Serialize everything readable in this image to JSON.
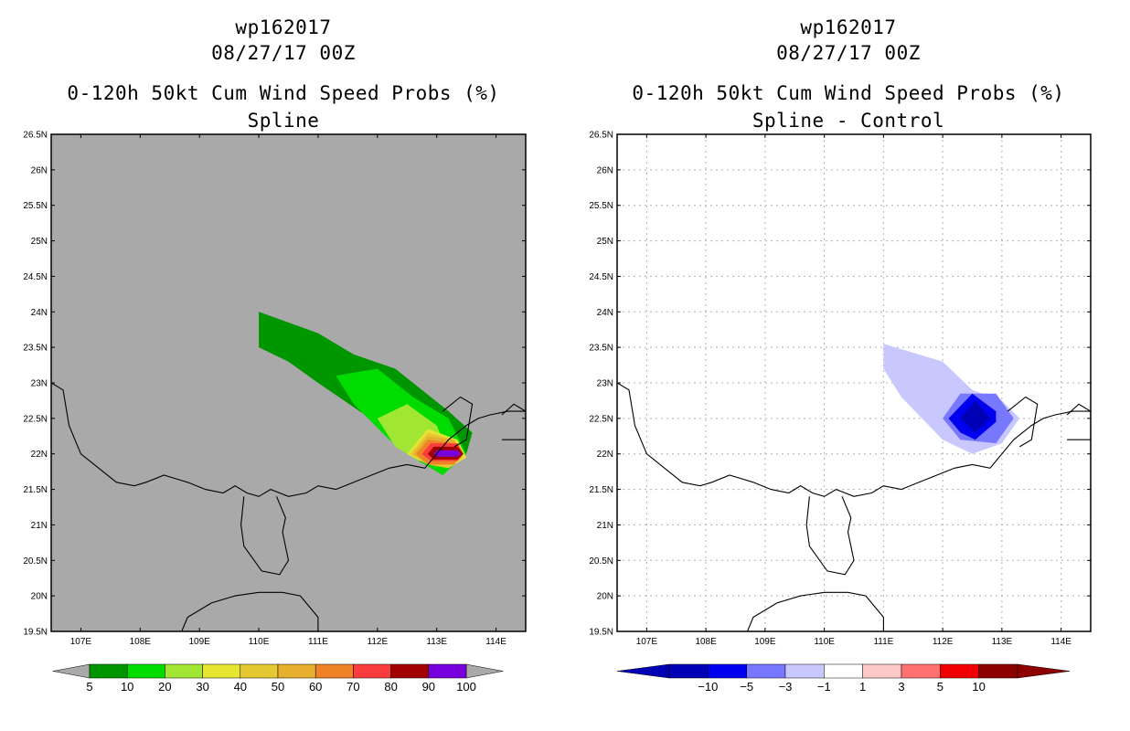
{
  "chart_data": [
    {
      "type": "contour-map",
      "storm_id": "wp162017",
      "datetime": "08/27/17 00Z",
      "title": "0-120h 50kt Cum Wind Speed Probs (%)",
      "subtitle": "Spline",
      "background_color": "#a9a9a9",
      "lon_ticks": [
        "107E",
        "108E",
        "109E",
        "110E",
        "111E",
        "112E",
        "113E",
        "114E"
      ],
      "lon_values": [
        107,
        108,
        109,
        110,
        111,
        112,
        113,
        114
      ],
      "lat_ticks": [
        "26.5N",
        "26N",
        "25.5N",
        "25N",
        "24.5N",
        "24N",
        "23.5N",
        "23N",
        "22.5N",
        "22N",
        "21.5N",
        "21N",
        "20.5N",
        "20N",
        "19.5N"
      ],
      "lat_values": [
        26.5,
        26,
        25.5,
        25,
        24.5,
        24,
        23.5,
        23,
        22.5,
        22,
        21.5,
        21,
        20.5,
        20,
        19.5
      ],
      "xlim": [
        106.5,
        114.5
      ],
      "ylim": [
        19.5,
        26.5
      ],
      "grid": false,
      "colorbar": {
        "labels": [
          "5",
          "10",
          "20",
          "30",
          "40",
          "50",
          "60",
          "70",
          "80",
          "90",
          "100"
        ],
        "colors": [
          "#009600",
          "#00dc00",
          "#a0e632",
          "#e6e632",
          "#e6c832",
          "#e6af2d",
          "#f08228",
          "#fa3c3c",
          "#a00000",
          "#7800dc"
        ],
        "low_end_color": "#a9a9a9",
        "high_end_color": "#a9a9a9"
      },
      "contours": [
        {
          "level": 5,
          "color": "#009600",
          "polygon": [
            [
              110,
              24
            ],
            [
              111,
              23.7
            ],
            [
              111.6,
              23.4
            ],
            [
              112.3,
              23.2
            ],
            [
              112.9,
              22.8
            ],
            [
              113.2,
              22.6
            ],
            [
              113.6,
              22.3
            ],
            [
              113.5,
              22.0
            ],
            [
              113.2,
              21.8
            ],
            [
              112.7,
              22.0
            ],
            [
              112.3,
              22.3
            ],
            [
              111.7,
              22.6
            ],
            [
              111.0,
              23.0
            ],
            [
              110.5,
              23.3
            ],
            [
              110,
              23.5
            ]
          ]
        },
        {
          "level": 10,
          "color": "#00dc00",
          "polygon": [
            [
              111.3,
              23.1
            ],
            [
              112.0,
              23.2
            ],
            [
              112.6,
              22.8
            ],
            [
              113.2,
              22.5
            ],
            [
              113.5,
              22.0
            ],
            [
              113.1,
              21.7
            ],
            [
              112.7,
              21.9
            ],
            [
              112.2,
              22.2
            ],
            [
              111.6,
              22.7
            ]
          ]
        },
        {
          "level": 20,
          "color": "#a0e632",
          "polygon": [
            [
              112.0,
              22.5
            ],
            [
              112.5,
              22.7
            ],
            [
              113.0,
              22.4
            ],
            [
              113.2,
              22.0
            ],
            [
              112.7,
              21.9
            ],
            [
              112.3,
              22.1
            ]
          ]
        },
        {
          "level": 30,
          "color": "#e6e632",
          "polygon": [
            [
              112.5,
              22.0
            ],
            [
              112.85,
              22.35
            ],
            [
              113.35,
              22.2
            ],
            [
              113.5,
              21.95
            ],
            [
              113.2,
              21.8
            ],
            [
              112.85,
              21.85
            ]
          ]
        },
        {
          "level": 40,
          "color": "#e6c832",
          "polygon": [
            [
              112.55,
              22.0
            ],
            [
              112.85,
              22.3
            ],
            [
              113.3,
              22.2
            ],
            [
              113.45,
              21.95
            ],
            [
              113.2,
              21.8
            ],
            [
              112.85,
              21.85
            ]
          ]
        },
        {
          "level": 50,
          "color": "#e6af2d",
          "polygon": [
            [
              112.6,
              22.0
            ],
            [
              112.85,
              22.25
            ],
            [
              113.3,
              22.2
            ],
            [
              113.4,
              21.95
            ],
            [
              113.2,
              21.85
            ],
            [
              112.85,
              21.85
            ]
          ]
        },
        {
          "level": 60,
          "color": "#f08228",
          "polygon": [
            [
              112.65,
              22.0
            ],
            [
              112.85,
              22.2
            ],
            [
              113.3,
              22.15
            ],
            [
              113.4,
              22.0
            ],
            [
              113.3,
              21.85
            ],
            [
              112.85,
              21.85
            ]
          ]
        },
        {
          "level": 70,
          "color": "#fa3c3c",
          "polygon": [
            [
              112.75,
              22.0
            ],
            [
              112.9,
              22.15
            ],
            [
              113.35,
              22.15
            ],
            [
              113.45,
              22.0
            ],
            [
              113.35,
              21.9
            ],
            [
              112.9,
              21.9
            ]
          ]
        },
        {
          "level": 80,
          "color": "#a00000",
          "polygon": [
            [
              112.85,
              22.0
            ],
            [
              112.95,
              22.1
            ],
            [
              113.35,
              22.1
            ],
            [
              113.45,
              22.0
            ],
            [
              113.35,
              21.92
            ],
            [
              112.95,
              21.92
            ]
          ]
        },
        {
          "level": 90,
          "color": "#7800dc",
          "polygon": [
            [
              112.95,
              22.0
            ],
            [
              113.0,
              22.05
            ],
            [
              113.35,
              22.05
            ],
            [
              113.4,
              22.0
            ],
            [
              113.35,
              21.96
            ],
            [
              113.0,
              21.96
            ]
          ]
        }
      ]
    },
    {
      "type": "contour-map",
      "storm_id": "wp162017",
      "datetime": "08/27/17 00Z",
      "title": "0-120h 50kt Cum Wind Speed Probs (%)",
      "subtitle": "Spline - Control",
      "background_color": "#ffffff",
      "lon_ticks": [
        "107E",
        "108E",
        "109E",
        "110E",
        "111E",
        "112E",
        "113E",
        "114E"
      ],
      "lon_values": [
        107,
        108,
        109,
        110,
        111,
        112,
        113,
        114
      ],
      "lat_ticks": [
        "26.5N",
        "26N",
        "25.5N",
        "25N",
        "24.5N",
        "24N",
        "23.5N",
        "23N",
        "22.5N",
        "22N",
        "21.5N",
        "21N",
        "20.5N",
        "20N",
        "19.5N"
      ],
      "lat_values": [
        26.5,
        26,
        25.5,
        25,
        24.5,
        24,
        23.5,
        23,
        22.5,
        22,
        21.5,
        21,
        20.5,
        20,
        19.5
      ],
      "xlim": [
        106.5,
        114.5
      ],
      "ylim": [
        19.5,
        26.5
      ],
      "grid": true,
      "colorbar": {
        "labels": [
          "−10",
          "−5",
          "−3",
          "−1",
          "1",
          "3",
          "5",
          "10"
        ],
        "colors": [
          "#0000b4",
          "#0000f0",
          "#7878ff",
          "#c8c8ff",
          "#ffffff",
          "#ffc8c8",
          "#ff7070",
          "#f00000",
          "#8c0000"
        ],
        "low_end_color": "#0000b4",
        "high_end_color": "#8c0000"
      },
      "contours": [
        {
          "level": -1,
          "color": "#c8c8ff",
          "polygon": [
            [
              111.0,
              23.55
            ],
            [
              112.0,
              23.3
            ],
            [
              112.5,
              22.9
            ],
            [
              113.0,
              22.75
            ],
            [
              113.3,
              22.5
            ],
            [
              113.0,
              22.15
            ],
            [
              112.5,
              22.0
            ],
            [
              112.0,
              22.2
            ],
            [
              111.3,
              22.8
            ],
            [
              111.0,
              23.2
            ]
          ]
        },
        {
          "level": -3,
          "color": "#7878ff",
          "polygon": [
            [
              112.0,
              22.5
            ],
            [
              112.3,
              22.85
            ],
            [
              112.9,
              22.85
            ],
            [
              113.2,
              22.5
            ],
            [
              112.9,
              22.15
            ],
            [
              112.3,
              22.2
            ]
          ]
        },
        {
          "level": -5,
          "color": "#0000f0",
          "polygon": [
            [
              112.1,
              22.5
            ],
            [
              112.5,
              22.85
            ],
            [
              112.9,
              22.6
            ],
            [
              112.9,
              22.45
            ],
            [
              112.55,
              22.2
            ],
            [
              112.3,
              22.3
            ]
          ]
        },
        {
          "level": -10,
          "color": "#0000b4",
          "polygon": [
            [
              112.3,
              22.5
            ],
            [
              112.55,
              22.75
            ],
            [
              112.8,
              22.5
            ],
            [
              112.55,
              22.3
            ]
          ]
        }
      ]
    }
  ],
  "coastline": {
    "mainland": [
      [
        106.5,
        23.0
      ],
      [
        106.7,
        22.9
      ],
      [
        106.8,
        22.4
      ],
      [
        107.0,
        22.0
      ],
      [
        107.3,
        21.8
      ],
      [
        107.6,
        21.6
      ],
      [
        107.9,
        21.55
      ],
      [
        108.1,
        21.6
      ],
      [
        108.4,
        21.7
      ],
      [
        108.6,
        21.65
      ],
      [
        108.8,
        21.6
      ],
      [
        109.1,
        21.5
      ],
      [
        109.4,
        21.45
      ],
      [
        109.6,
        21.55
      ],
      [
        109.8,
        21.45
      ],
      [
        110.0,
        21.4
      ],
      [
        110.2,
        21.5
      ],
      [
        110.5,
        21.4
      ],
      [
        110.8,
        21.45
      ],
      [
        111.0,
        21.55
      ],
      [
        111.3,
        21.5
      ],
      [
        111.6,
        21.6
      ],
      [
        111.9,
        21.7
      ],
      [
        112.2,
        21.8
      ],
      [
        112.5,
        21.85
      ],
      [
        112.8,
        21.8
      ],
      [
        113.0,
        22.0
      ],
      [
        113.2,
        22.2
      ],
      [
        113.5,
        22.4
      ],
      [
        113.7,
        22.5
      ],
      [
        113.9,
        22.55
      ],
      [
        114.2,
        22.6
      ],
      [
        114.5,
        22.6
      ]
    ],
    "leizhou": [
      [
        109.75,
        21.4
      ],
      [
        109.7,
        21.0
      ],
      [
        109.75,
        20.7
      ],
      [
        110.05,
        20.35
      ],
      [
        110.35,
        20.3
      ],
      [
        110.5,
        20.5
      ],
      [
        110.4,
        20.9
      ],
      [
        110.45,
        21.1
      ],
      [
        110.3,
        21.4
      ]
    ],
    "hainan": [
      [
        108.7,
        19.5
      ],
      [
        108.8,
        19.7
      ],
      [
        109.2,
        19.9
      ],
      [
        109.6,
        20.0
      ],
      [
        110.0,
        20.05
      ],
      [
        110.4,
        20.05
      ],
      [
        110.7,
        20.0
      ],
      [
        111.0,
        19.7
      ],
      [
        111.0,
        19.5
      ]
    ],
    "pearl_estuary": [
      [
        113.1,
        22.6
      ],
      [
        113.4,
        22.8
      ],
      [
        113.6,
        22.7
      ],
      [
        113.5,
        22.2
      ],
      [
        113.3,
        22.1
      ]
    ],
    "hk_box": [
      [
        114.1,
        22.2
      ],
      [
        114.5,
        22.2
      ],
      [
        114.5,
        22.6
      ],
      [
        114.3,
        22.7
      ],
      [
        114.1,
        22.55
      ]
    ]
  }
}
